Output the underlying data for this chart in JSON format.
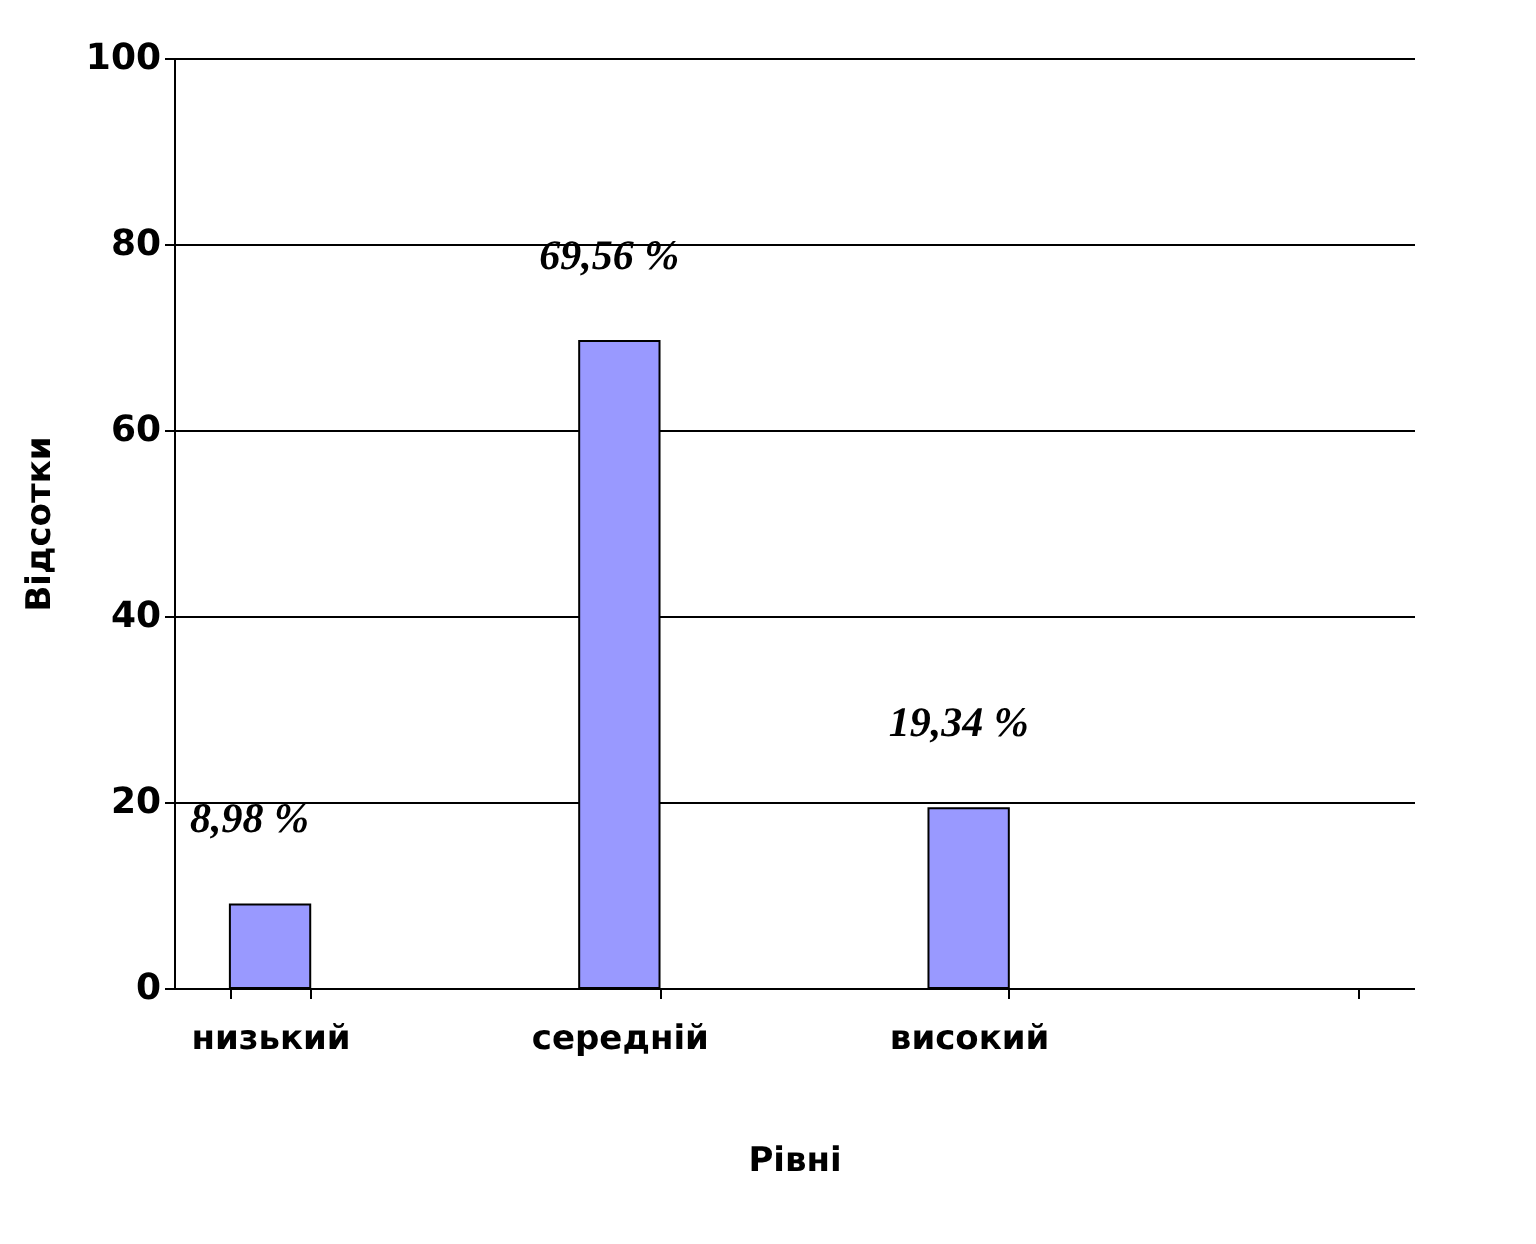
{
  "chart_data": {
    "type": "bar",
    "xlabel": "Рівні",
    "ylabel": "Відсотки",
    "categories": [
      "низький",
      "середній",
      "високий",
      null
    ],
    "values": [
      8.98,
      69.56,
      19.34,
      null
    ],
    "value_labels": [
      "8,98 %",
      "69,56 %",
      "19,34 %",
      null
    ],
    "color": "#9999ff",
    "ylim": [
      0,
      100
    ],
    "yticks": [
      0,
      20,
      40,
      60,
      80,
      100
    ],
    "grid": "y"
  }
}
